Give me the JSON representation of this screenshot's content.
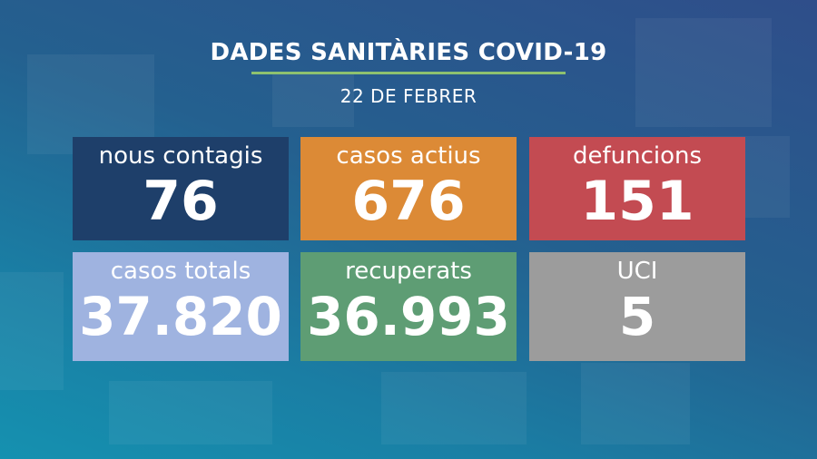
{
  "title": "DADES SANITÀRIES COVID-19",
  "date": "22 DE FEBRER",
  "colors": {
    "title_rule": "#8ec16f",
    "tile_nous_contagis": "#1e3f6a",
    "tile_casos_actius": "#dc8a36",
    "tile_defuncions": "#c34b52",
    "tile_casos_totals": "#9fb3e0",
    "tile_recuperats": "#5e9d74",
    "tile_uci": "#9c9c9c"
  },
  "tiles": [
    {
      "label": "nous contagis",
      "value": "76"
    },
    {
      "label": "casos actius",
      "value": "676"
    },
    {
      "label": "defuncions",
      "value": "151"
    },
    {
      "label": "casos totals",
      "value": "37.820"
    },
    {
      "label": "recuperats",
      "value": "36.993"
    },
    {
      "label": "UCI",
      "value": "5"
    }
  ]
}
